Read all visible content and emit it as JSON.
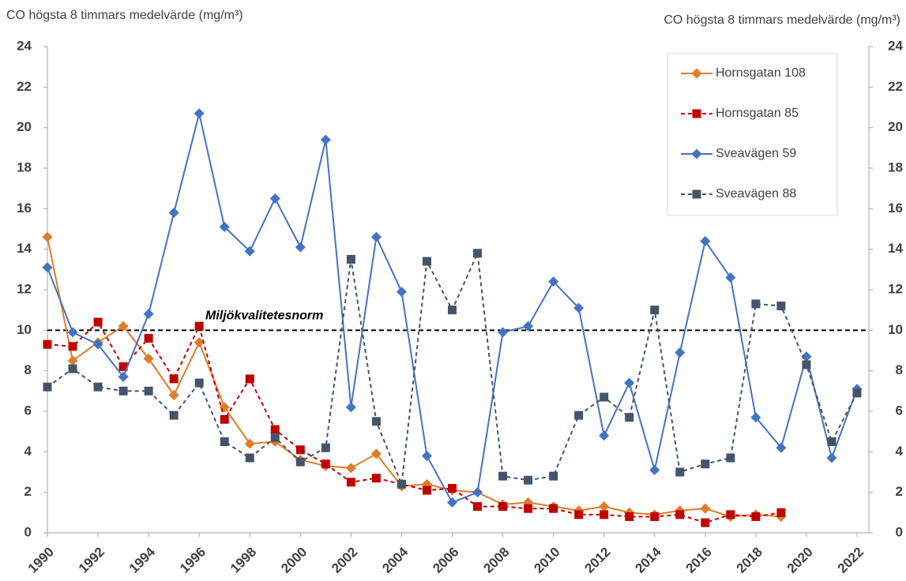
{
  "chart_data": {
    "type": "line",
    "y_title": "CO högsta 8 timmars medelvärde (mg/m³)",
    "y2_title": "CO högsta 8 timmars medelvärde (mg/m³)",
    "x": [
      1990,
      1991,
      1992,
      1993,
      1994,
      1995,
      1996,
      1997,
      1998,
      1999,
      2000,
      2001,
      2002,
      2003,
      2004,
      2005,
      2006,
      2007,
      2008,
      2009,
      2010,
      2011,
      2012,
      2013,
      2014,
      2015,
      2016,
      2017,
      2018,
      2019,
      2020,
      2021,
      2022
    ],
    "xlim": [
      1990,
      2022
    ],
    "xticks": [
      1990,
      1992,
      1994,
      1996,
      1998,
      2000,
      2002,
      2004,
      2006,
      2008,
      2010,
      2012,
      2014,
      2016,
      2018,
      2020,
      2022
    ],
    "ylim": [
      0,
      24
    ],
    "yticks": [
      0,
      2,
      4,
      6,
      8,
      10,
      12,
      14,
      16,
      18,
      20,
      22,
      24
    ],
    "y2lim": [
      0,
      24
    ],
    "y2ticks": [
      0,
      2,
      4,
      6,
      8,
      10,
      12,
      14,
      16,
      18,
      20,
      22,
      24
    ],
    "legend": "top-right",
    "reference_line": {
      "value": 10,
      "label": "Miljökvalitetesnorm",
      "color": "#000000"
    },
    "series": [
      {
        "name": "Hornsgatan 108",
        "color": "#e07b28",
        "marker": "diamond",
        "line_style": "solid",
        "values": [
          14.6,
          8.5,
          9.4,
          10.2,
          8.6,
          6.8,
          9.4,
          6.2,
          4.4,
          4.5,
          3.6,
          3.3,
          3.2,
          3.9,
          2.3,
          2.4,
          2.1,
          2.0,
          1.4,
          1.5,
          1.3,
          1.1,
          1.3,
          1.0,
          0.9,
          1.1,
          1.2,
          0.8,
          0.9,
          0.8,
          null,
          null,
          null
        ]
      },
      {
        "name": "Hornsgatan 85",
        "color": "#c00000",
        "marker": "square",
        "line_style": "dashed",
        "values": [
          9.3,
          9.2,
          10.4,
          8.2,
          9.6,
          7.6,
          10.2,
          5.6,
          7.6,
          5.1,
          4.1,
          3.4,
          2.5,
          2.7,
          2.4,
          2.1,
          2.2,
          1.3,
          1.3,
          1.2,
          1.2,
          0.9,
          0.9,
          0.8,
          0.8,
          0.9,
          0.5,
          0.9,
          0.8,
          1.0,
          null,
          null,
          null
        ]
      },
      {
        "name": "Sveavägen 59",
        "color": "#4472c4",
        "marker": "diamond",
        "line_style": "solid",
        "values": [
          13.1,
          9.9,
          9.3,
          7.7,
          10.8,
          15.8,
          20.7,
          15.1,
          13.9,
          16.5,
          14.1,
          19.4,
          6.2,
          14.6,
          11.9,
          3.8,
          1.5,
          2.0,
          9.9,
          10.2,
          12.4,
          11.1,
          4.8,
          7.4,
          3.1,
          8.9,
          14.4,
          12.6,
          5.7,
          4.2,
          8.7,
          3.7,
          7.1
        ]
      },
      {
        "name": "Sveavägen 88",
        "color": "#44546a",
        "marker": "square",
        "line_style": "dashed",
        "values": [
          7.2,
          8.1,
          7.2,
          7.0,
          7.0,
          5.8,
          7.4,
          4.5,
          3.7,
          4.7,
          3.5,
          4.2,
          13.5,
          5.5,
          2.4,
          13.4,
          11.0,
          13.8,
          2.8,
          2.6,
          2.8,
          5.8,
          6.7,
          5.7,
          11.0,
          3.0,
          3.4,
          3.7,
          11.3,
          11.2,
          8.3,
          4.5,
          6.9
        ]
      }
    ]
  }
}
